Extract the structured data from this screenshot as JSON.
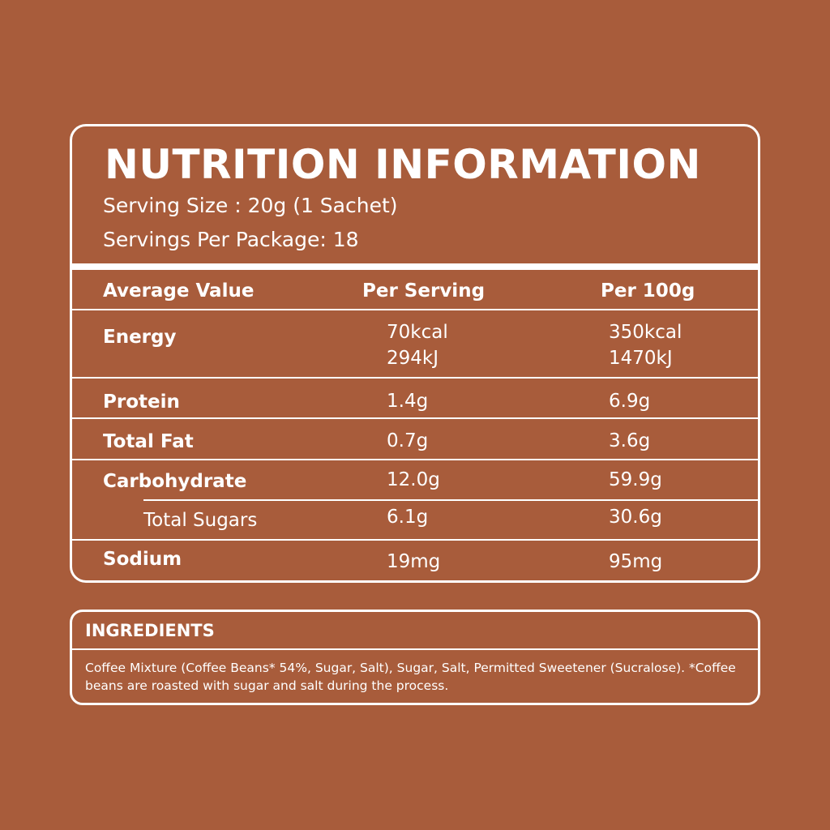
{
  "nutrition": {
    "title": "NUTRITION INFORMATION",
    "serving_size": "Serving Size : 20g (1 Sachet)",
    "servings_per_package": "Servings Per Package: 18",
    "headers": {
      "label": "Average Value",
      "per_serving": "Per Serving",
      "per_100g": "Per 100g"
    },
    "rows": [
      {
        "label": "Energy",
        "per_serving": [
          "70kcal",
          "294kJ"
        ],
        "per_100g": [
          "350kcal",
          "1470kJ"
        ]
      },
      {
        "label": "Protein",
        "per_serving": "1.4g",
        "per_100g": "6.9g"
      },
      {
        "label": "Total Fat",
        "per_serving": "0.7g",
        "per_100g": "3.6g"
      },
      {
        "label": "Carbohydrate",
        "per_serving": "12.0g",
        "per_100g": "59.9g"
      },
      {
        "label": "Total Sugars",
        "per_serving": "6.1g",
        "per_100g": "30.6g"
      },
      {
        "label": "Sodium",
        "per_serving": "19mg",
        "per_100g": "95mg"
      }
    ]
  },
  "ingredients": {
    "title": "INGREDIENTS",
    "text": "Coffee Mixture (Coffee Beans* 54%, Sugar, Salt), Sugar, Salt, Permitted Sweetener (Sucralose). *Coffee beans are roasted with sugar and salt during the process."
  },
  "colors": {
    "background": "#A85C3B",
    "foreground": "#FFFFFF"
  }
}
